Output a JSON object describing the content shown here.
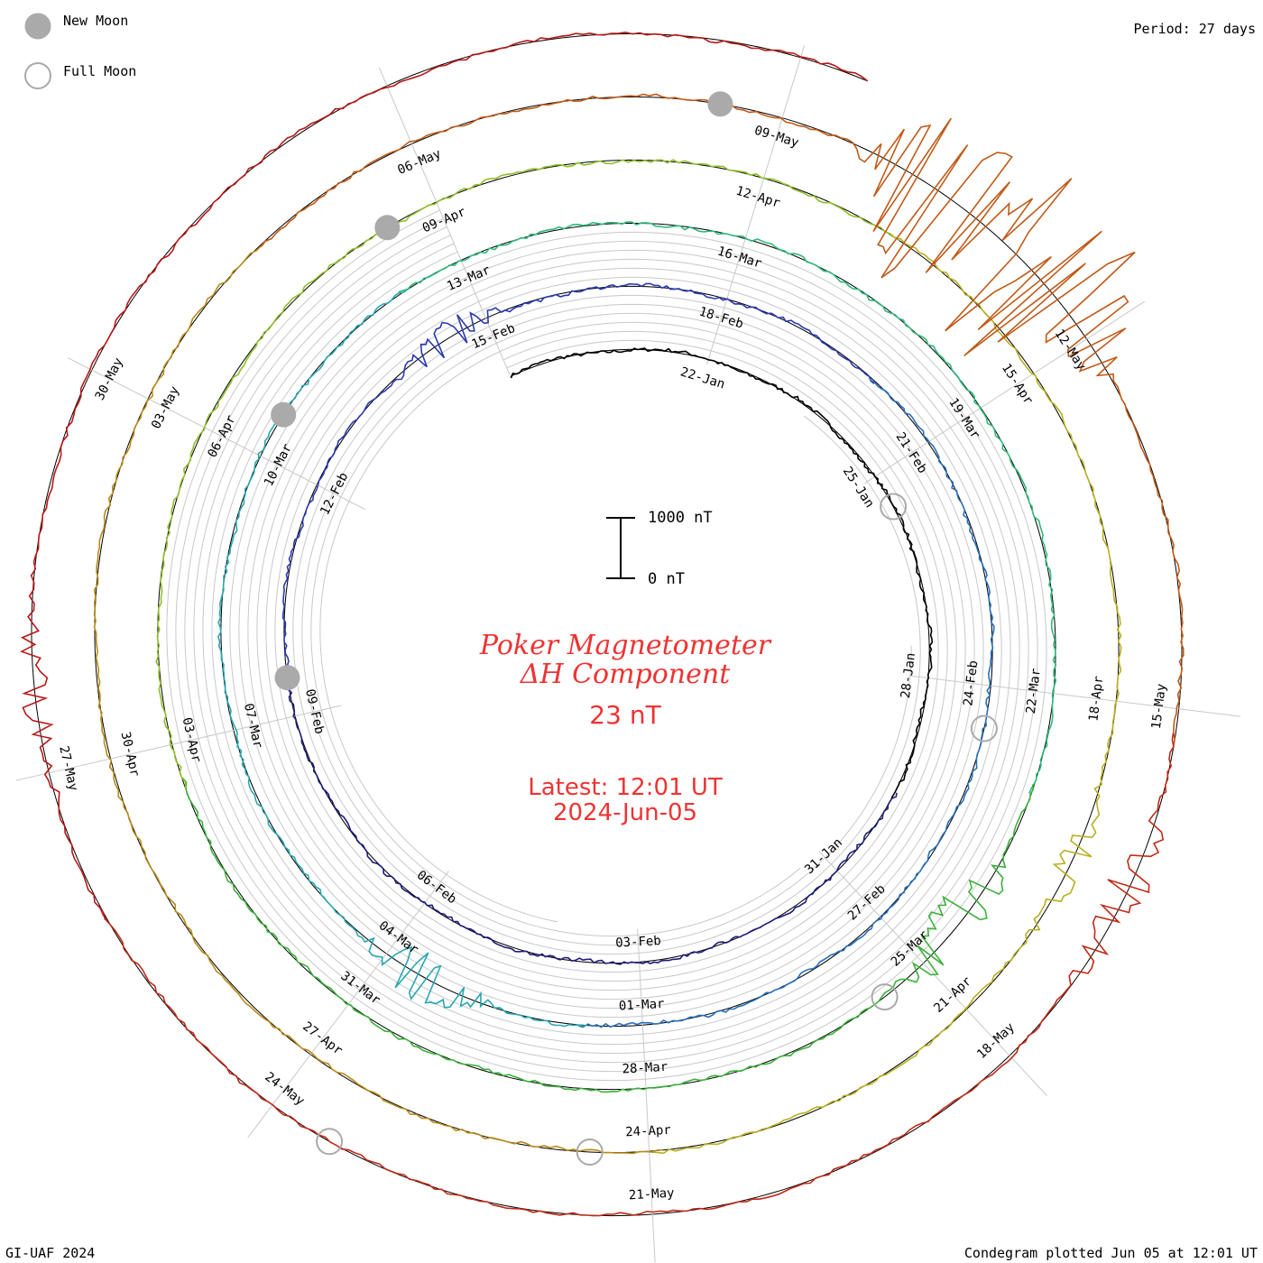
{
  "header": {
    "legend_new_moon": "New Moon",
    "legend_full_moon": "Full Moon",
    "period": "Period: 27 days"
  },
  "center": {
    "title_line1": "Poker Magnetometer",
    "title_line2": "ΔH Component",
    "value": "23 nT",
    "latest": "Latest: 12:01 UT",
    "date": "2024-Jun-05",
    "scale_top": "1000 nT",
    "scale_bottom": "0 nT"
  },
  "footer": {
    "left": "GI-UAF 2024",
    "right": "Condegram plotted Jun 05 at 12:01 UT"
  },
  "chart_data": {
    "type": "line",
    "title": "Poker Magnetometer ΔH Component",
    "subtitle": "Latest: 12:01 UT 2024-Jun-05",
    "period_days": 27,
    "scale_nT": [
      0,
      1000
    ],
    "start_date": "2024-01-19",
    "end_date": "2024-06-05",
    "tick_labels": [
      "22-Jan",
      "25-Jan",
      "28-Jan",
      "31-Jan",
      "03-Feb",
      "06-Feb",
      "09-Feb",
      "12-Feb",
      "15-Feb",
      "18-Feb",
      "21-Feb",
      "24-Feb",
      "27-Feb",
      "01-Mar",
      "04-Mar",
      "07-Mar",
      "10-Mar",
      "13-Mar",
      "16-Mar",
      "19-Mar",
      "22-Mar",
      "25-Mar",
      "28-Mar",
      "31-Mar",
      "03-Apr",
      "06-Apr",
      "09-Apr",
      "12-Apr",
      "15-Apr",
      "18-Apr",
      "21-Apr",
      "24-Apr",
      "27-Apr",
      "30-Apr",
      "03-May",
      "06-May",
      "09-May",
      "12-May",
      "15-May",
      "18-May",
      "21-May",
      "24-May",
      "27-May",
      "30-May"
    ],
    "new_moons": [
      "2024-02-09",
      "2024-03-10",
      "2024-04-08",
      "2024-05-08"
    ],
    "full_moons": [
      "2024-01-25",
      "2024-02-24",
      "2024-03-25",
      "2024-04-24",
      "2024-05-23"
    ],
    "series_colors": [
      "#000000",
      "#1d1d7a",
      "#2b3ab0",
      "#2a6fb8",
      "#2aa6b0",
      "#2fba7a",
      "#3cb03c",
      "#8fbe2a",
      "#b8b020",
      "#b88a18",
      "#c05a18",
      "#c02a18",
      "#b81818"
    ],
    "activity_events": [
      {
        "date": "2024-02-14",
        "value": 260
      },
      {
        "date": "2024-03-03",
        "value": 420
      },
      {
        "date": "2024-03-24",
        "value": 520
      },
      {
        "date": "2024-04-19",
        "value": 260
      },
      {
        "date": "2024-05-10",
        "value": 1900
      },
      {
        "date": "2024-05-11",
        "value": 1600
      },
      {
        "date": "2024-05-16",
        "value": 380
      },
      {
        "date": "2024-05-27",
        "value": 240
      }
    ]
  }
}
